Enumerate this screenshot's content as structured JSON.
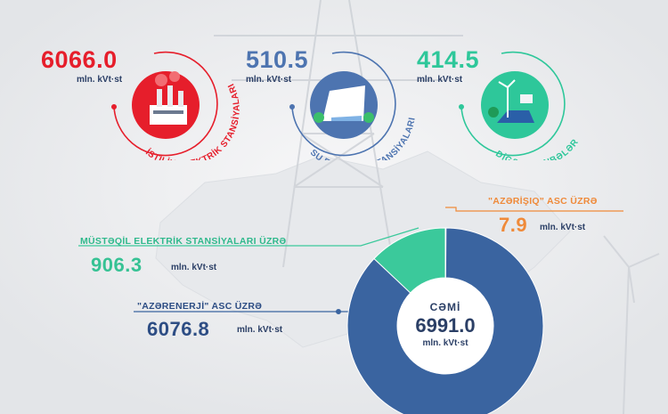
{
  "colors": {
    "thermal": "#e61e2b",
    "hydro": "#4d74b0",
    "other": "#2ec79a",
    "azerenerji": "#3a64a0",
    "independent": "#3bc99b",
    "azerishiq": "#f08a38",
    "navy": "#2b3f66"
  },
  "sources": [
    {
      "value": "6066.0",
      "unit": "mln. kVt·st",
      "label": "İSTİLİK ELEKTRİK STANSİYALARI",
      "icon": "thermal-plant-icon"
    },
    {
      "value": "510.5",
      "unit": "mln. kVt·st",
      "label": "SU ELEKTRİK STANSİYALARI",
      "icon": "hydro-dam-icon"
    },
    {
      "value": "414.5",
      "unit": "mln. kVt·st",
      "label": "DİGƏR MƏNBƏLƏR",
      "icon": "renewables-icon"
    }
  ],
  "chart_data": {
    "type": "pie",
    "title": "",
    "center": {
      "label": "CƏMİ",
      "value": "6991.0",
      "unit": "mln. kVt·st"
    },
    "series": [
      {
        "name": "\"AZƏRENERJİ\" ASC ÜZRƏ",
        "value": 6076.8,
        "display": "6076.8",
        "unit": "mln. kVt·st",
        "color": "#3a64a0"
      },
      {
        "name": "MÜSTƏQİL ELEKTRİK STANSİYALARI ÜZRƏ",
        "value": 906.3,
        "display": "906.3",
        "unit": "mln. kVt·st",
        "color": "#3bc99b"
      },
      {
        "name": "\"AZƏRİŞIQ\" ASC ÜZRƏ",
        "value": 7.9,
        "display": "7.9",
        "unit": "mln. kVt·st",
        "color": "#f08a38"
      }
    ]
  }
}
